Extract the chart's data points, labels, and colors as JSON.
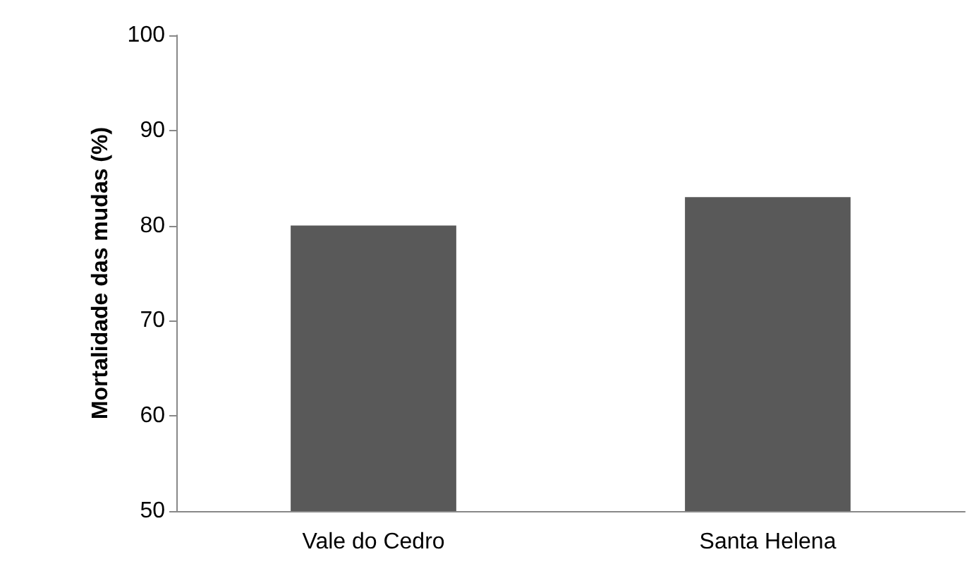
{
  "chart_data": {
    "type": "bar",
    "ylabel": "Mortalidade das mudas (%)",
    "categories": [
      "Vale do Cedro",
      "Santa Helena"
    ],
    "values": [
      80,
      83
    ],
    "color": "#595959",
    "ylim": [
      50,
      100
    ],
    "yticks": [
      50,
      60,
      70,
      80,
      90,
      100
    ],
    "grid": false
  }
}
